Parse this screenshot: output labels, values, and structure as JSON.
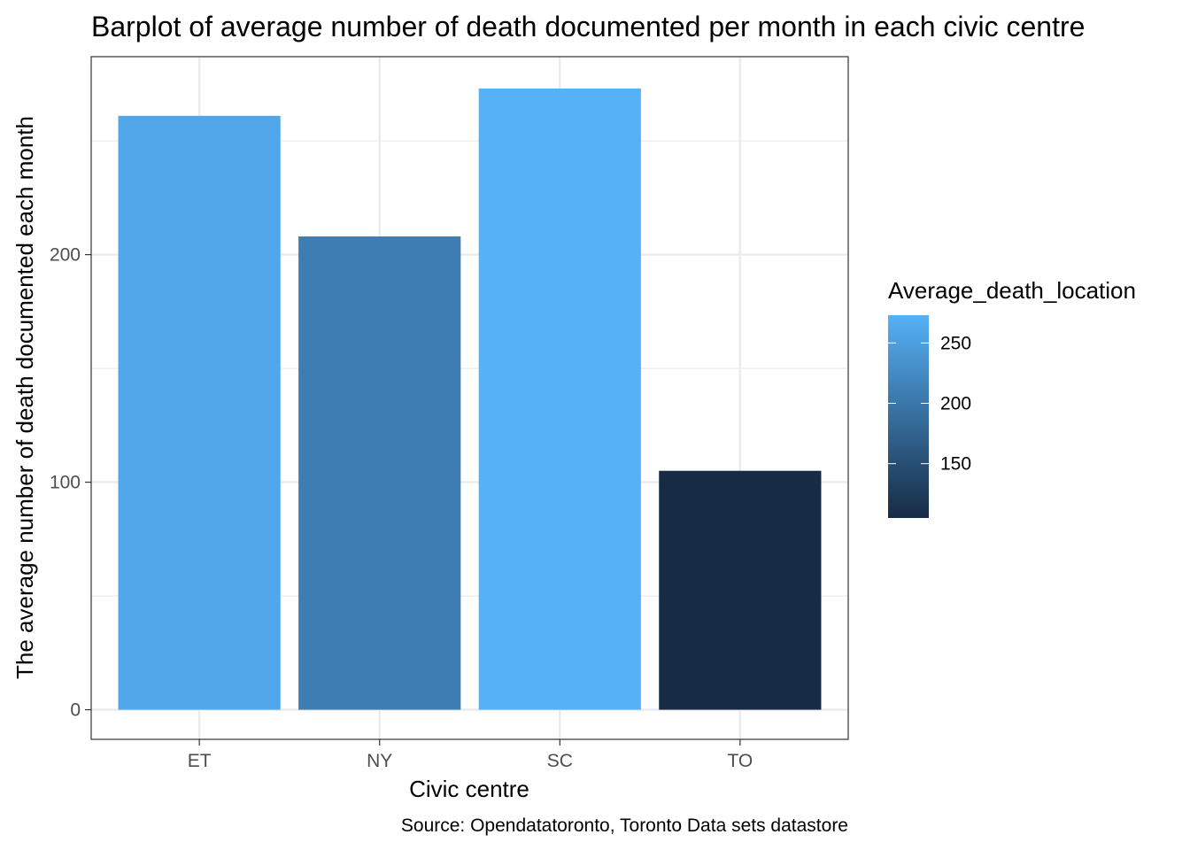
{
  "chart_data": {
    "type": "bar",
    "title": "Barplot of average number of death documented per month in each civic centre",
    "xlabel": "Civic centre",
    "ylabel": "The average number of death documented each month",
    "caption": "Source: Opendatatoronto, Toronto Data sets datastore",
    "categories": [
      "ET",
      "NY",
      "SC",
      "TO"
    ],
    "values": [
      261,
      208,
      273,
      105
    ],
    "ylim": [
      -13,
      287
    ],
    "yticks": [
      0,
      100,
      200
    ],
    "ytick_labels": [
      "0",
      "100",
      "200"
    ],
    "grid": true,
    "legend": {
      "title": "Average_death_location",
      "position": "right",
      "type": "continuous color scale",
      "range": [
        105,
        273
      ],
      "ticks": [
        150,
        200,
        250
      ],
      "tick_labels": [
        "150",
        "200",
        "250"
      ],
      "color_low": "#172b44",
      "color_high": "#56b1f7"
    }
  }
}
